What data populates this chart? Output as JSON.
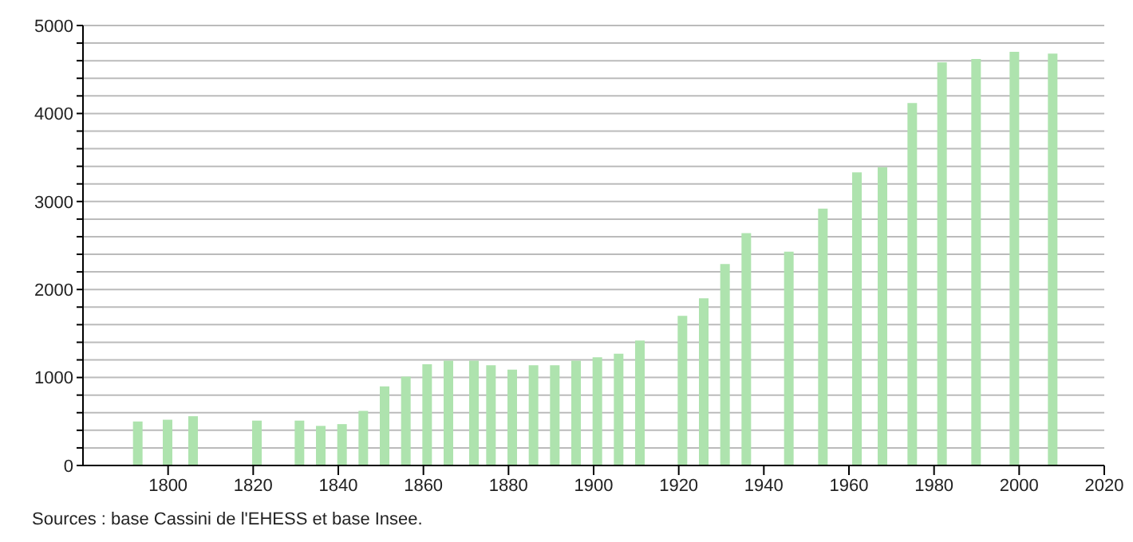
{
  "chart_data": {
    "type": "bar",
    "x": [
      1793,
      1800,
      1806,
      1821,
      1831,
      1836,
      1841,
      1846,
      1851,
      1856,
      1861,
      1866,
      1872,
      1876,
      1881,
      1886,
      1891,
      1896,
      1901,
      1906,
      1911,
      1921,
      1926,
      1931,
      1936,
      1946,
      1954,
      1962,
      1968,
      1975,
      1982,
      1990,
      1999,
      2008
    ],
    "values": [
      500,
      520,
      560,
      510,
      510,
      450,
      470,
      620,
      900,
      1010,
      1150,
      1190,
      1190,
      1140,
      1090,
      1140,
      1140,
      1190,
      1230,
      1270,
      1420,
      1700,
      1900,
      2290,
      2640,
      2430,
      2920,
      3330,
      3390,
      4120,
      4580,
      4620,
      4700,
      4680
    ],
    "color": "#aee3ae",
    "xlim": [
      1780,
      2020
    ],
    "xticks": [
      1800,
      1820,
      1840,
      1860,
      1880,
      1900,
      1920,
      1940,
      1960,
      1980,
      2000,
      2020
    ],
    "ylim": [
      0,
      5000
    ],
    "yticks": [
      0,
      {
        "value": 200,
        "label": null
      },
      {
        "value": 400,
        "label": null
      },
      {
        "value": 600,
        "label": null
      },
      {
        "value": 800,
        "label": null
      },
      1000,
      {
        "value": 1200,
        "label": null
      },
      {
        "value": 1400,
        "label": null
      },
      {
        "value": 1600,
        "label": null
      },
      {
        "value": 1800,
        "label": null
      },
      2000,
      {
        "value": 2200,
        "label": null
      },
      {
        "value": 2400,
        "label": null
      },
      {
        "value": 2600,
        "label": null
      },
      {
        "value": 2800,
        "label": null
      },
      3000,
      {
        "value": 3200,
        "label": null
      },
      {
        "value": 3400,
        "label": null
      },
      {
        "value": 3600,
        "label": null
      },
      {
        "value": 3800,
        "label": null
      },
      4000,
      {
        "value": 4200,
        "label": null
      },
      {
        "value": 4400,
        "label": null
      },
      {
        "value": 4600,
        "label": null
      },
      {
        "value": 4800,
        "label": null
      },
      5000
    ],
    "grid": "y",
    "annotations": [
      "Sources : base Cassini de l'EHESS et base Insee."
    ]
  }
}
